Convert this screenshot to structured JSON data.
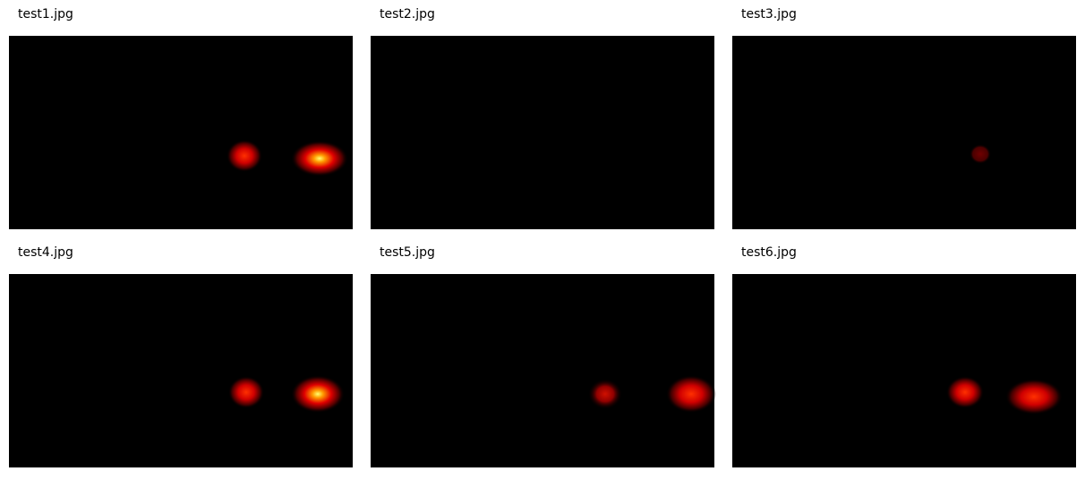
{
  "panels": [
    {
      "title": "test1.jpg"
    },
    {
      "title": "test2.jpg"
    },
    {
      "title": "test3.jpg"
    },
    {
      "title": "test4.jpg"
    },
    {
      "title": "test5.jpg"
    },
    {
      "title": "test6.jpg"
    }
  ]
}
